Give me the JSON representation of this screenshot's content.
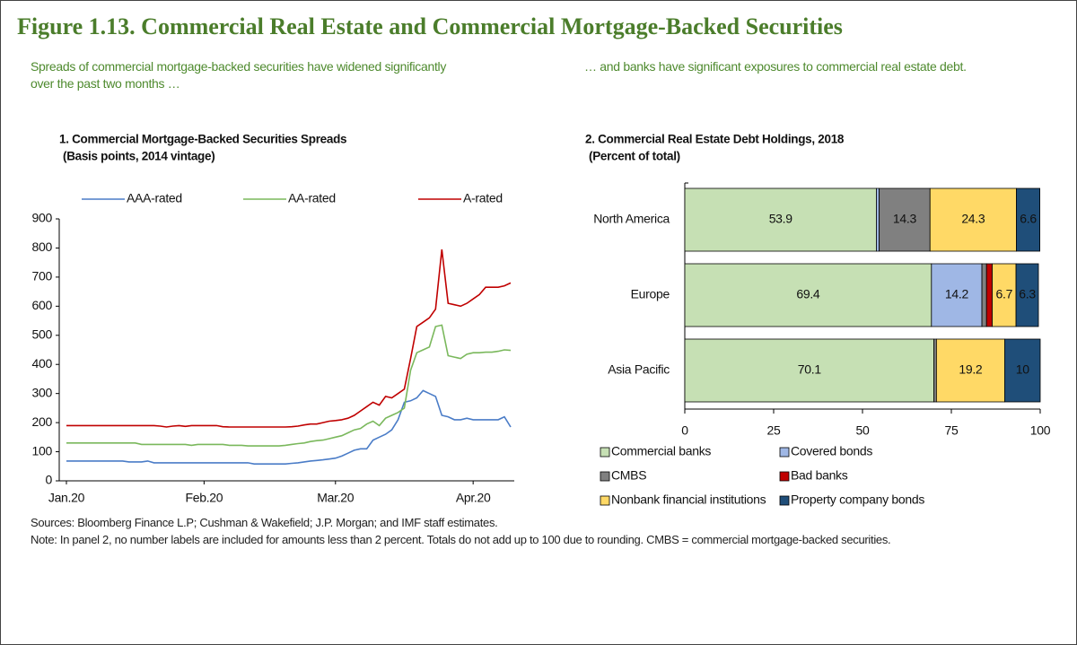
{
  "title": "Figure 1.13. Commercial Real Estate and Commercial Mortgage-Backed Securities",
  "captions": [
    "Spreads of commercial mortgage-backed securities have widened significantly over the past two months …",
    "… and banks have significant exposures to commercial real estate debt."
  ],
  "chart_data": [
    {
      "type": "line",
      "title": "1. Commercial Mortgage-Backed Securities Spreads",
      "subtitle": "(Basis points, 2014 vintage)",
      "categories": [
        "Jan.20",
        null,
        null,
        null,
        null,
        null,
        null,
        null,
        null,
        null,
        null,
        null,
        null,
        null,
        null,
        null,
        null,
        null,
        null,
        null,
        null,
        null,
        "Feb.20",
        null,
        null,
        null,
        null,
        null,
        null,
        null,
        null,
        null,
        null,
        null,
        null,
        null,
        null,
        null,
        null,
        null,
        null,
        null,
        null,
        "Mar.20",
        null,
        null,
        null,
        null,
        null,
        null,
        null,
        null,
        null,
        null,
        null,
        null,
        null,
        null,
        null,
        null,
        null,
        null,
        null,
        null,
        null,
        "Apr.20",
        null,
        null,
        null,
        null,
        null,
        null
      ],
      "series": [
        {
          "name": "AAA-rated",
          "color": "#4a7cc7",
          "values": [
            68,
            68,
            68,
            68,
            68,
            68,
            68,
            68,
            68,
            68,
            65,
            65,
            65,
            68,
            62,
            62,
            62,
            62,
            62,
            62,
            62,
            62,
            62,
            62,
            62,
            62,
            62,
            62,
            62,
            62,
            58,
            58,
            58,
            58,
            58,
            58,
            60,
            62,
            65,
            68,
            70,
            72,
            75,
            78,
            85,
            95,
            105,
            110,
            110,
            140,
            150,
            160,
            175,
            210,
            270,
            275,
            285,
            310,
            300,
            290,
            225,
            220,
            210,
            210,
            215,
            210,
            210,
            210,
            210,
            210,
            220,
            185
          ]
        },
        {
          "name": "AA-rated",
          "color": "#7ab85c",
          "values": [
            130,
            130,
            130,
            130,
            130,
            130,
            130,
            130,
            130,
            130,
            130,
            130,
            125,
            125,
            125,
            125,
            125,
            125,
            125,
            125,
            122,
            125,
            125,
            125,
            125,
            125,
            122,
            122,
            122,
            120,
            120,
            120,
            120,
            120,
            120,
            122,
            125,
            128,
            130,
            135,
            138,
            140,
            145,
            150,
            155,
            165,
            175,
            180,
            195,
            205,
            190,
            215,
            225,
            235,
            250,
            380,
            440,
            450,
            460,
            530,
            535,
            430,
            425,
            420,
            435,
            440,
            440,
            442,
            442,
            445,
            450,
            448
          ]
        },
        {
          "name": "A-rated",
          "color": "#c00000",
          "values": [
            190,
            190,
            190,
            190,
            190,
            190,
            190,
            190,
            190,
            190,
            190,
            190,
            190,
            190,
            190,
            188,
            185,
            188,
            190,
            187,
            190,
            190,
            190,
            190,
            190,
            186,
            185,
            185,
            185,
            185,
            185,
            185,
            185,
            185,
            185,
            185,
            186,
            188,
            192,
            195,
            195,
            200,
            205,
            207,
            210,
            215,
            225,
            240,
            255,
            270,
            260,
            290,
            285,
            300,
            315,
            420,
            530,
            545,
            560,
            590,
            795,
            610,
            605,
            600,
            610,
            625,
            640,
            665,
            665,
            665,
            670,
            680
          ]
        }
      ],
      "ylim": [
        0,
        900
      ],
      "yticks": [
        0,
        100,
        200,
        300,
        400,
        500,
        600,
        700,
        800,
        900
      ],
      "legend": "top"
    },
    {
      "type": "bar",
      "orientation": "horizontal",
      "stacked": true,
      "title": "2. Commercial Real Estate Debt Holdings, 2018",
      "subtitle": "(Percent of total)",
      "categories": [
        "North America",
        "Europe",
        "Asia Pacific"
      ],
      "series": [
        {
          "name": "Commercial banks",
          "color": "#c6e0b4",
          "values": [
            53.9,
            69.4,
            70.1
          ]
        },
        {
          "name": "Covered bonds",
          "color": "#9fb7e5",
          "values": [
            0.8,
            14.2,
            0
          ]
        },
        {
          "name": "CMBS",
          "color": "#808080",
          "values": [
            14.3,
            1.3,
            0.7
          ]
        },
        {
          "name": "Bad banks",
          "color": "#c00000",
          "values": [
            0,
            1.6,
            0
          ]
        },
        {
          "name": "Nonbank financial institutions",
          "color": "#ffd966",
          "values": [
            24.3,
            6.7,
            19.2
          ]
        },
        {
          "name": "Property company bonds",
          "color": "#1f4e79",
          "values": [
            6.6,
            6.3,
            10
          ]
        }
      ],
      "xlim": [
        0,
        100
      ],
      "xticks": [
        0,
        25,
        50,
        75,
        100
      ],
      "legend": "bottom"
    }
  ],
  "sources": "Sources: Bloomberg Finance L.P; Cushman & Wakefield; J.P. Morgan; and IMF staff estimates.",
  "note": "Note: In panel 2, no number labels are included for amounts less than 2 percent. Totals do not add up to 100 due to rounding. CMBS = commercial mortgage-backed securities."
}
